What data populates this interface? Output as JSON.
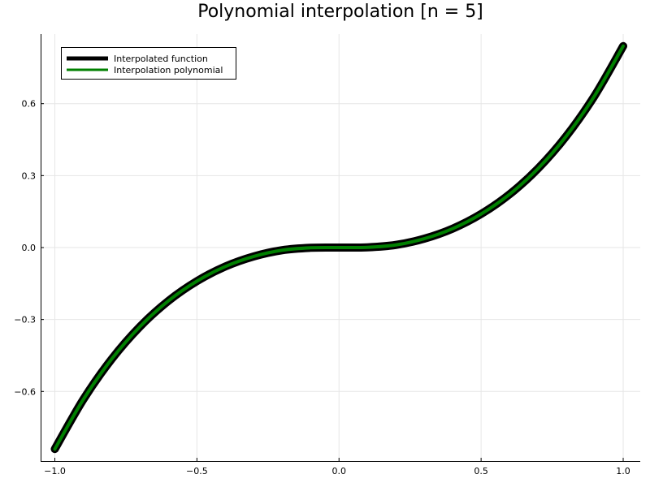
{
  "chart_data": {
    "type": "line",
    "title": "Polynomial interpolation [n = 5]",
    "xlabel": "",
    "ylabel": "",
    "xlim": [
      -1.05,
      1.06
    ],
    "ylim": [
      -0.89,
      0.89
    ],
    "xticks": [
      -1.0,
      -0.5,
      0.0,
      0.5,
      1.0
    ],
    "xtick_labels": [
      "−1.0",
      "−0.5",
      "0.0",
      "0.5",
      "1.0"
    ],
    "yticks": [
      -0.6,
      -0.3,
      0.0,
      0.3,
      0.6
    ],
    "ytick_labels": [
      "−0.6",
      "−0.3",
      "0.0",
      "0.3",
      "0.6"
    ],
    "grid": true,
    "legend_position": "top-left",
    "x": [
      -1.0,
      -0.9,
      -0.8,
      -0.7,
      -0.6,
      -0.5,
      -0.4,
      -0.3,
      -0.2,
      -0.1,
      0.0,
      0.1,
      0.2,
      0.3,
      0.4,
      0.5,
      0.6,
      0.7,
      0.8,
      0.9,
      1.0
    ],
    "series": [
      {
        "name": "Interpolated function",
        "color": "#000000",
        "values": [
          -0.84,
          -0.634,
          -0.465,
          -0.329,
          -0.222,
          -0.14,
          -0.079,
          -0.037,
          -0.011,
          -0.001,
          0.0,
          0.001,
          0.011,
          0.037,
          0.079,
          0.14,
          0.222,
          0.329,
          0.465,
          0.634,
          0.84
        ]
      },
      {
        "name": "Interpolation polynomial",
        "color": "#008000",
        "values": [
          -0.84,
          -0.634,
          -0.465,
          -0.329,
          -0.222,
          -0.14,
          -0.079,
          -0.037,
          -0.011,
          -0.001,
          0.0,
          0.001,
          0.011,
          0.037,
          0.079,
          0.14,
          0.222,
          0.329,
          0.465,
          0.634,
          0.84
        ]
      }
    ]
  }
}
